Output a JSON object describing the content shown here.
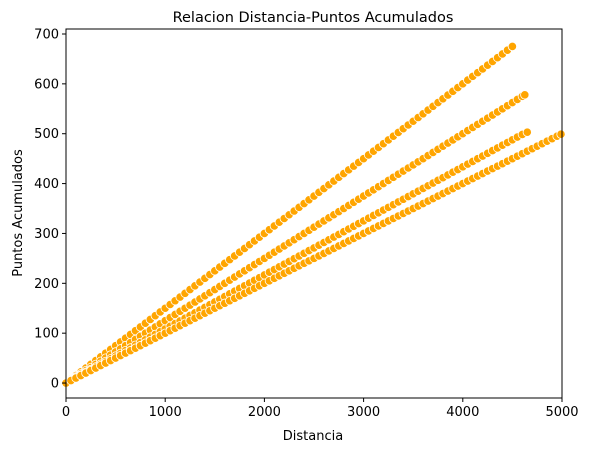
{
  "chart_data": {
    "type": "scatter",
    "title": "Relacion Distancia-Puntos Acumulados",
    "xlabel": "Distancia",
    "ylabel": "Puntos Acumulados",
    "xlim": [
      0,
      5000
    ],
    "ylim": [
      -30,
      710
    ],
    "xticks": [
      0,
      1000,
      2000,
      3000,
      4000,
      5000
    ],
    "yticks": [
      0,
      100,
      200,
      300,
      400,
      500,
      600,
      700
    ],
    "grid": false,
    "legend": "none",
    "marker_color": "#FFA500",
    "marker_edge_color": "#FFFFFF",
    "series": [
      {
        "x_start": 0,
        "x_end": 4500,
        "step": 50,
        "slope": 0.15,
        "last": [
          4500,
          675
        ]
      },
      {
        "x_start": 0,
        "x_end": 4600,
        "step": 50,
        "slope": 0.125,
        "last": [
          4625,
          578
        ]
      },
      {
        "x_start": 0,
        "x_end": 4600,
        "step": 50,
        "slope": 0.1084,
        "last": [
          4650,
          503
        ]
      },
      {
        "x_start": 0,
        "x_end": 4980,
        "step": 50,
        "slope": 0.1,
        "last": [
          4990,
          499
        ]
      }
    ]
  }
}
